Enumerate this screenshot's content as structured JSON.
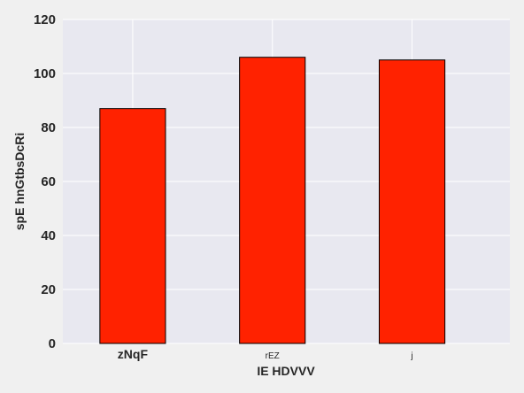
{
  "chart_data": {
    "type": "bar",
    "xlabel": "IE HDVVV",
    "ylabel": "spE hnGtbsDcRi",
    "categories": [
      "zNqF",
      "rEZ",
      "j"
    ],
    "values": [
      87,
      106,
      105
    ],
    "ylim": [
      0,
      120
    ],
    "yticks": [
      0,
      20,
      40,
      60,
      80,
      100,
      120
    ],
    "grid": true,
    "bar_color": "#ff2200",
    "plot_background": "#e8e8f0"
  }
}
